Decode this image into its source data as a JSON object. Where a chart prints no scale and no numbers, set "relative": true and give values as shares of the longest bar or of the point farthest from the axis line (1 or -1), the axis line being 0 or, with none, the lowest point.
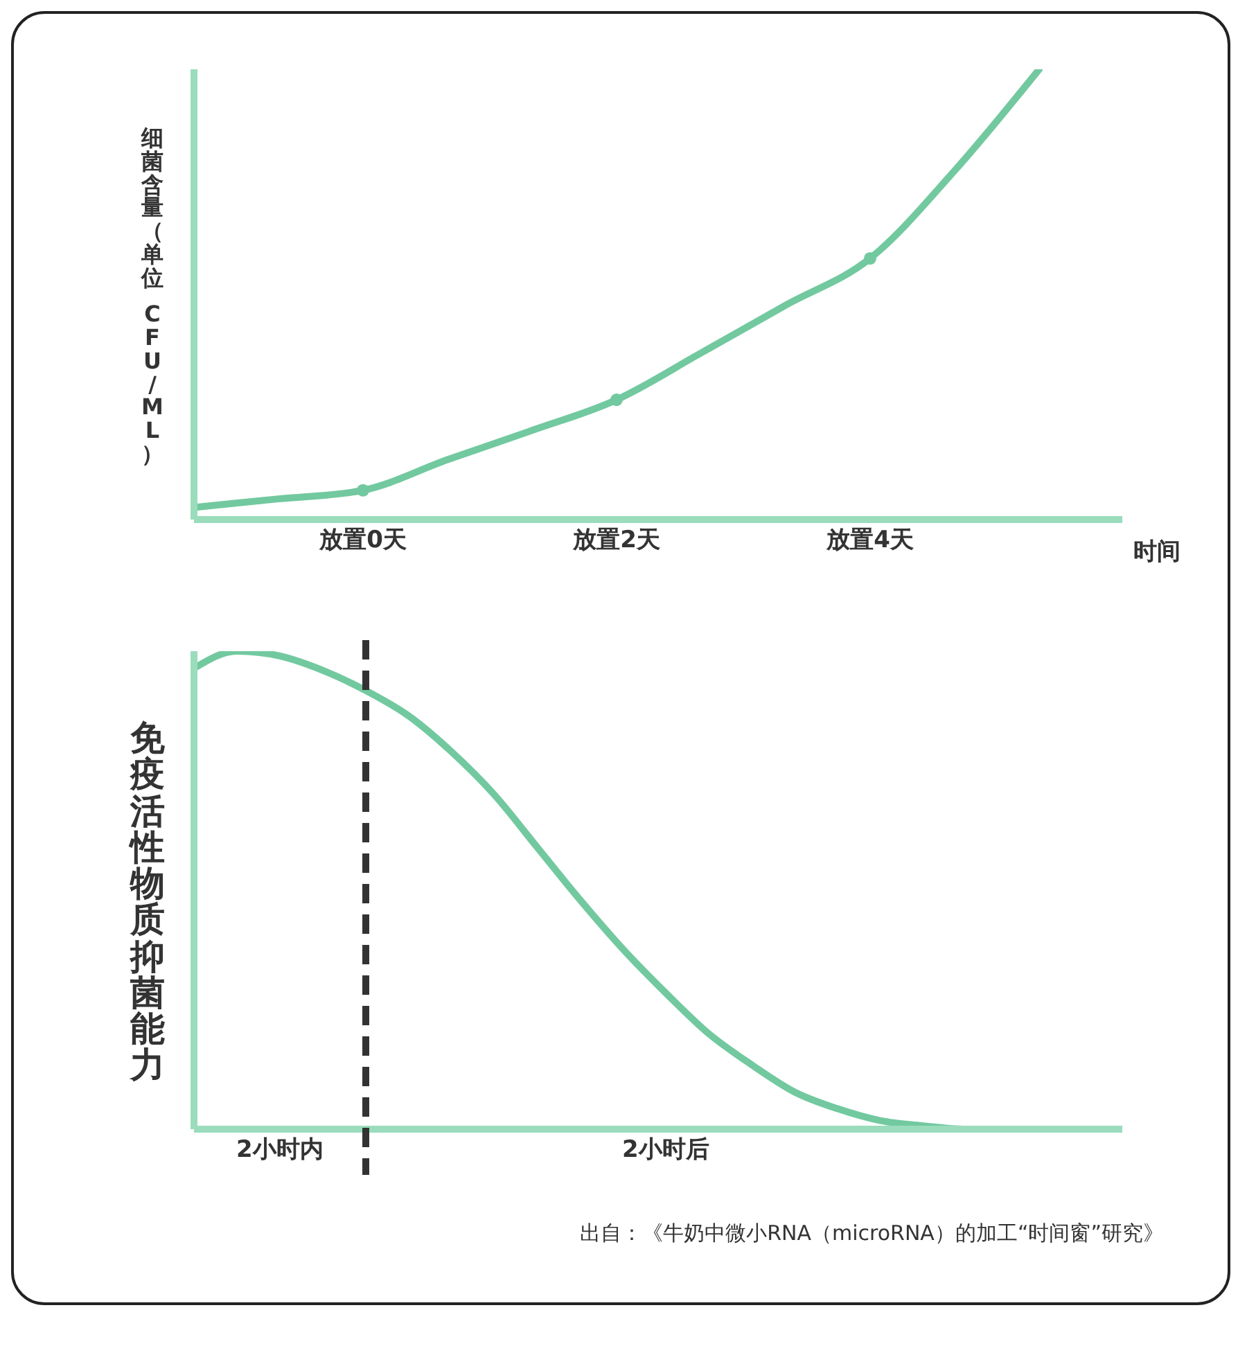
{
  "chart_data": [
    {
      "type": "line",
      "relative": true,
      "ylabel": "细菌含量（单位 CFU/ML）",
      "xlabel": "时间",
      "categories": [
        null,
        null,
        "放置0天",
        null,
        null,
        "放置2天",
        null,
        null,
        "放置4天",
        null,
        null
      ],
      "series": [
        {
          "color": "#72c99f",
          "marker": "none",
          "values": [
            0.027,
            0.046,
            0.065,
            0.133,
            0.198,
            0.266,
            0.37,
            0.476,
            0.58,
            0.775,
            1
          ]
        },
        {
          "type": "scatter",
          "color": "#72c99f",
          "marker": "circle",
          "values": [
            null,
            null,
            0.065,
            null,
            null,
            0.266,
            null,
            null,
            0.58,
            null,
            null
          ]
        }
      ],
      "grid": false,
      "legend": false
    },
    {
      "type": "line",
      "relative": true,
      "ylabel": "免疫活性物质抑菌能力",
      "categories": [
        null,
        null,
        "2小时内",
        null,
        null,
        null,
        null,
        null,
        null,
        null,
        null,
        "2小时后",
        null,
        null,
        null,
        null,
        null,
        null,
        null,
        null,
        null,
        null
      ],
      "values": [
        0.964,
        1,
        0.99,
        0.96,
        0.918,
        0.865,
        0.79,
        0.7,
        0.59,
        0.48,
        0.377,
        0.285,
        0.2,
        0.135,
        0.078,
        0.043,
        0.018,
        0.007,
        0,
        0,
        0,
        0
      ],
      "color": "#72c99f",
      "marker": "none",
      "grid": false,
      "legend": false,
      "annotations": [
        "出自：《牛奶中微小RNA（microRNA）的加工“时间窗”研究》"
      ]
    }
  ]
}
